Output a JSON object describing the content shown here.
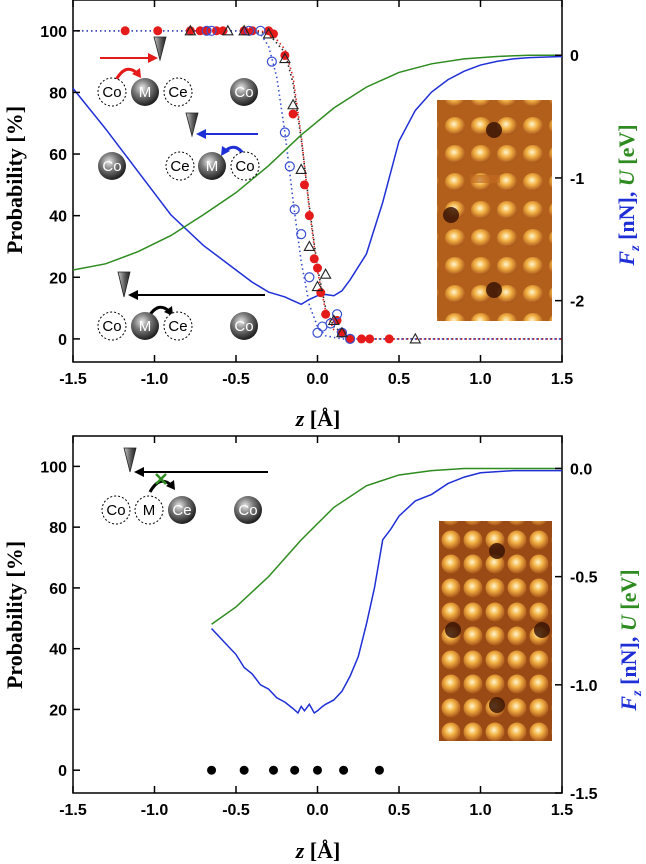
{
  "chart_data": [
    {
      "type": "line",
      "panel": "top",
      "xlabel_italic": "z",
      "xlabel_rest": " [Å]",
      "ylabel": "Probability [%]",
      "y2label": {
        "f": "F",
        "fsub": "z",
        "nn": " [nN], ",
        "u": "U",
        "ev": " [eV]"
      },
      "xlim": [
        -1.5,
        1.5
      ],
      "ylim": [
        -7.5,
        110
      ],
      "y2lim": [
        -2.5,
        0.45
      ],
      "xticks": [
        -1.5,
        -1.0,
        -0.5,
        0.0,
        0.5,
        1.0,
        1.5
      ],
      "xtick_labels": [
        "-1.5",
        "-1.0",
        "-0.5",
        "0.0",
        "0.5",
        "1.0",
        "1.5"
      ],
      "yticks": [
        0,
        20,
        40,
        60,
        80,
        100
      ],
      "ytick_labels": [
        "0",
        "20",
        "40",
        "60",
        "80",
        "100"
      ],
      "y2ticks": [
        -2,
        -1,
        0
      ],
      "y2tick_labels": [
        "-2",
        "-1",
        "0"
      ],
      "colors": {
        "force": "#1f2fd6",
        "energy": "#2e8b1f",
        "filled": "#e51a1a",
        "open_circle": "#3a4fd0",
        "triangle": "#222222"
      },
      "series": [
        {
          "kind": "force_curve",
          "axis": "right",
          "color": "#1f2fd6",
          "x": [
            -1.5,
            -1.3,
            -1.1,
            -0.9,
            -0.7,
            -0.5,
            -0.4,
            -0.3,
            -0.2,
            -0.15,
            -0.1,
            -0.05,
            0.0,
            0.05,
            0.1,
            0.15,
            0.2,
            0.3,
            0.4,
            0.5,
            0.6,
            0.7,
            0.8,
            0.9,
            1.0,
            1.1,
            1.2,
            1.3,
            1.5
          ],
          "y": [
            -0.27,
            -0.6,
            -0.95,
            -1.3,
            -1.55,
            -1.75,
            -1.85,
            -1.93,
            -1.97,
            -2.0,
            -2.03,
            -1.99,
            -1.96,
            -1.95,
            -1.96,
            -1.92,
            -1.83,
            -1.62,
            -1.2,
            -0.7,
            -0.45,
            -0.3,
            -0.2,
            -0.13,
            -0.08,
            -0.05,
            -0.03,
            -0.02,
            -0.01
          ]
        },
        {
          "kind": "energy_curve",
          "axis": "right",
          "color": "#2e8b1f",
          "x": [
            -1.5,
            -1.3,
            -1.1,
            -0.9,
            -0.7,
            -0.5,
            -0.3,
            -0.1,
            0.1,
            0.3,
            0.5,
            0.7,
            0.9,
            1.1,
            1.3,
            1.5
          ],
          "y": [
            -1.75,
            -1.7,
            -1.6,
            -1.47,
            -1.3,
            -1.12,
            -0.9,
            -0.65,
            -0.43,
            -0.26,
            -0.14,
            -0.07,
            -0.03,
            -0.01,
            0.0,
            0.0
          ]
        },
        {
          "kind": "filled_circles",
          "color": "#e51a1a",
          "x": [
            -1.18,
            -0.98,
            -0.78,
            -0.72,
            -0.68,
            -0.62,
            -0.58,
            -0.45,
            -0.4,
            -0.3,
            -0.27,
            -0.2,
            -0.15,
            -0.08,
            -0.05,
            -0.02,
            0.0,
            0.02,
            0.05,
            0.12,
            0.15,
            0.2,
            0.27,
            0.32,
            0.44
          ],
          "y": [
            100,
            100,
            100,
            100,
            100,
            100,
            100,
            100,
            100,
            100,
            99,
            92,
            73,
            50,
            40,
            26,
            23,
            15,
            8,
            6,
            2,
            0,
            0,
            0,
            0
          ]
        },
        {
          "kind": "open_circles",
          "color": "#3a4fd0",
          "x": [
            -0.68,
            -0.65,
            -0.42,
            -0.35,
            -0.28,
            -0.2,
            -0.17,
            -0.14,
            -0.1,
            -0.05,
            0.0,
            0.03,
            0.08,
            0.12,
            0.15,
            0.2
          ],
          "y": [
            100,
            100,
            100,
            100,
            90,
            67,
            56,
            42,
            34,
            20,
            2,
            4,
            5,
            8,
            2,
            0
          ]
        },
        {
          "kind": "triangles",
          "color": "#222222",
          "x": [
            -0.78,
            -0.55,
            -0.45,
            -0.3,
            -0.2,
            -0.15,
            -0.1,
            -0.05,
            0.0,
            0.05,
            0.1,
            0.15,
            0.6
          ],
          "y": [
            100,
            100,
            100,
            99,
            91,
            76,
            55,
            30,
            17,
            21,
            6,
            2,
            0
          ]
        }
      ],
      "dotted_fits": [
        {
          "color": "#222222",
          "x": [
            -1.5,
            -0.4,
            -0.3,
            -0.2,
            -0.15,
            -0.1,
            -0.05,
            0.0,
            0.05,
            0.1,
            0.15,
            0.25,
            1.5
          ],
          "y": [
            100,
            100,
            99,
            93,
            83,
            65,
            43,
            23,
            10,
            4,
            2,
            0,
            0
          ]
        },
        {
          "color": "#e51a1a",
          "x": [
            -1.5,
            -0.35,
            -0.28,
            -0.2,
            -0.15,
            -0.1,
            -0.05,
            0.0,
            0.05,
            0.1,
            0.2,
            1.5
          ],
          "y": [
            100,
            100,
            99,
            94,
            85,
            66,
            42,
            22,
            9,
            3,
            0,
            0
          ]
        },
        {
          "color": "#3a4fd0",
          "x": [
            -1.5,
            -0.45,
            -0.35,
            -0.3,
            -0.25,
            -0.2,
            -0.15,
            -0.1,
            -0.05,
            0.0,
            0.05,
            0.15,
            1.5
          ],
          "y": [
            100,
            100,
            99,
            95,
            85,
            67,
            45,
            25,
            11,
            4,
            1,
            0,
            0
          ]
        }
      ],
      "inset_labels": {
        "co": "Co",
        "m": "M",
        "ce": "Ce"
      }
    },
    {
      "type": "line",
      "panel": "bottom",
      "xlabel_italic": "z",
      "xlabel_rest": " [Å]",
      "ylabel": "Probability [%]",
      "y2label": {
        "f": "F",
        "fsub": "z",
        "nn": " [nN], ",
        "u": "U",
        "ev": " [eV]"
      },
      "xlim": [
        -1.5,
        1.5
      ],
      "ylim": [
        -7.5,
        110
      ],
      "y2lim": [
        -1.5,
        0.15
      ],
      "xticks": [
        -1.5,
        -1.0,
        -0.5,
        0.0,
        0.5,
        1.0,
        1.5
      ],
      "xtick_labels": [
        "-1.5",
        "-1.0",
        "-0.5",
        "0.0",
        "0.5",
        "1.0",
        "1.5"
      ],
      "yticks": [
        0,
        20,
        40,
        60,
        80,
        100
      ],
      "ytick_labels": [
        "0",
        "20",
        "40",
        "60",
        "80",
        "100"
      ],
      "y2ticks": [
        -1.5,
        -1.0,
        -0.5,
        0.0
      ],
      "y2tick_labels": [
        "-1.5",
        "-1.0",
        "-0.5",
        "0.0"
      ],
      "series": [
        {
          "kind": "force_curve",
          "axis": "right",
          "color": "#1f2fd6",
          "x": [
            -0.65,
            -0.6,
            -0.5,
            -0.45,
            -0.4,
            -0.35,
            -0.3,
            -0.25,
            -0.2,
            -0.15,
            -0.12,
            -0.1,
            -0.08,
            -0.05,
            -0.02,
            0.0,
            0.03,
            0.05,
            0.1,
            0.15,
            0.2,
            0.25,
            0.3,
            0.35,
            0.4,
            0.45,
            0.5,
            0.6,
            0.7,
            0.8,
            0.9,
            1.0,
            1.2,
            1.5
          ],
          "y": [
            -0.74,
            -0.78,
            -0.86,
            -0.92,
            -0.95,
            -1.0,
            -1.02,
            -1.06,
            -1.08,
            -1.11,
            -1.13,
            -1.1,
            -1.12,
            -1.09,
            -1.13,
            -1.12,
            -1.1,
            -1.09,
            -1.07,
            -1.03,
            -0.96,
            -0.87,
            -0.72,
            -0.55,
            -0.33,
            -0.28,
            -0.22,
            -0.15,
            -0.12,
            -0.07,
            -0.04,
            -0.02,
            -0.01,
            -0.01
          ]
        },
        {
          "kind": "energy_curve",
          "axis": "right",
          "color": "#2e8b1f",
          "x": [
            -0.65,
            -0.5,
            -0.3,
            -0.1,
            0.1,
            0.3,
            0.5,
            0.7,
            0.9,
            1.1,
            1.3,
            1.5
          ],
          "y": [
            -0.72,
            -0.64,
            -0.5,
            -0.33,
            -0.18,
            -0.08,
            -0.03,
            -0.01,
            0.0,
            0.0,
            0.0,
            0.0
          ]
        },
        {
          "kind": "filled_circles",
          "color": "#000000",
          "x": [
            -0.65,
            -0.45,
            -0.27,
            -0.14,
            0.0,
            0.16,
            0.38
          ],
          "y": [
            0,
            0,
            0,
            0,
            0,
            0,
            0
          ]
        }
      ],
      "inset_labels": {
        "co": "Co",
        "m": "M",
        "ce": "Ce"
      }
    }
  ]
}
